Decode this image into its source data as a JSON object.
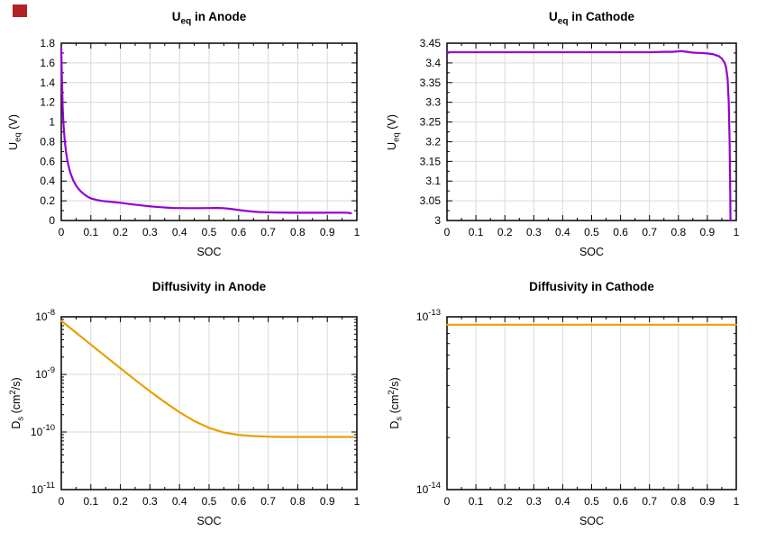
{
  "styles": {
    "background": "#ffffff",
    "axis_color": "#000000",
    "grid_color": "#d9d9d9",
    "text_color": "#000000",
    "anode_ocv_color": "#9400d3",
    "cathode_ocv_color": "#9400d3",
    "diffusivity_color": "#e8a000"
  },
  "marker": {
    "color": "#b22222"
  },
  "chart_data": [
    {
      "type": "line",
      "name": "ueq-anode",
      "title": "U_eq in Anode",
      "title_parts": [
        {
          "t": "U"
        },
        {
          "t": "eq",
          "sub": true
        },
        {
          "t": " in Anode"
        }
      ],
      "xlabel": "SOC",
      "ylabel": "U_eq (V)",
      "ylabel_parts": [
        {
          "t": "U"
        },
        {
          "t": "eq",
          "sub": true
        },
        {
          "t": " (V)"
        }
      ],
      "color": "#9400d3",
      "x_range": [
        0,
        1
      ],
      "y_range": [
        0,
        1.8
      ],
      "y_scale": "linear",
      "xtick_values": [
        0,
        0.1,
        0.2,
        0.3,
        0.4,
        0.5,
        0.6,
        0.7,
        0.8,
        0.9,
        1
      ],
      "xtick_labels": [
        "0",
        "0.1",
        "0.2",
        "0.3",
        "0.4",
        "0.5",
        "0.6",
        "0.7",
        "0.8",
        "0.9",
        "1"
      ],
      "ytick_values": [
        0,
        0.2,
        0.4,
        0.6,
        0.8,
        1,
        1.2,
        1.4,
        1.6,
        1.8
      ],
      "ytick_labels": [
        "0",
        "0.2",
        "0.4",
        "0.6",
        "0.8",
        "1",
        "1.2",
        "1.4",
        "1.6",
        "1.8"
      ],
      "x_minor_step": 0.05,
      "y_minor_step": 0.1,
      "grid": true,
      "points": [
        [
          0,
          1.75
        ],
        [
          0.002,
          1.45
        ],
        [
          0.005,
          1.12
        ],
        [
          0.008,
          0.95
        ],
        [
          0.012,
          0.8
        ],
        [
          0.016,
          0.7
        ],
        [
          0.02,
          0.62
        ],
        [
          0.025,
          0.55
        ],
        [
          0.03,
          0.49
        ],
        [
          0.04,
          0.41
        ],
        [
          0.05,
          0.355
        ],
        [
          0.06,
          0.315
        ],
        [
          0.07,
          0.285
        ],
        [
          0.08,
          0.26
        ],
        [
          0.09,
          0.24
        ],
        [
          0.1,
          0.225
        ],
        [
          0.12,
          0.208
        ],
        [
          0.14,
          0.198
        ],
        [
          0.16,
          0.192
        ],
        [
          0.18,
          0.186
        ],
        [
          0.2,
          0.18
        ],
        [
          0.22,
          0.172
        ],
        [
          0.24,
          0.164
        ],
        [
          0.26,
          0.157
        ],
        [
          0.28,
          0.15
        ],
        [
          0.3,
          0.144
        ],
        [
          0.32,
          0.139
        ],
        [
          0.34,
          0.134
        ],
        [
          0.36,
          0.13
        ],
        [
          0.38,
          0.127
        ],
        [
          0.4,
          0.126
        ],
        [
          0.43,
          0.125
        ],
        [
          0.46,
          0.125
        ],
        [
          0.5,
          0.126
        ],
        [
          0.53,
          0.127
        ],
        [
          0.55,
          0.125
        ],
        [
          0.57,
          0.119
        ],
        [
          0.59,
          0.111
        ],
        [
          0.61,
          0.103
        ],
        [
          0.63,
          0.096
        ],
        [
          0.65,
          0.09
        ],
        [
          0.67,
          0.086
        ],
        [
          0.7,
          0.083
        ],
        [
          0.73,
          0.081
        ],
        [
          0.76,
          0.08
        ],
        [
          0.8,
          0.079
        ],
        [
          0.84,
          0.079
        ],
        [
          0.88,
          0.079
        ],
        [
          0.92,
          0.08
        ],
        [
          0.95,
          0.08
        ],
        [
          0.97,
          0.078
        ],
        [
          0.98,
          0.073
        ]
      ]
    },
    {
      "type": "line",
      "name": "ueq-cathode",
      "title": "U_eq in Cathode",
      "title_parts": [
        {
          "t": "U"
        },
        {
          "t": "eq",
          "sub": true
        },
        {
          "t": " in Cathode"
        }
      ],
      "xlabel": "SOC",
      "ylabel": "U_eq (V)",
      "ylabel_parts": [
        {
          "t": "U"
        },
        {
          "t": "eq",
          "sub": true
        },
        {
          "t": " (V)"
        }
      ],
      "color": "#9400d3",
      "x_range": [
        0,
        1
      ],
      "y_range": [
        3,
        3.45
      ],
      "y_scale": "linear",
      "xtick_values": [
        0,
        0.1,
        0.2,
        0.3,
        0.4,
        0.5,
        0.6,
        0.7,
        0.8,
        0.9,
        1
      ],
      "xtick_labels": [
        "0",
        "0.1",
        "0.2",
        "0.3",
        "0.4",
        "0.5",
        "0.6",
        "0.7",
        "0.8",
        "0.9",
        "1"
      ],
      "ytick_values": [
        3,
        3.05,
        3.1,
        3.15,
        3.2,
        3.25,
        3.3,
        3.35,
        3.4,
        3.45
      ],
      "ytick_labels": [
        "3",
        "3.05",
        "3.1",
        "3.15",
        "3.2",
        "3.25",
        "3.3",
        "3.35",
        "3.4",
        "3.45"
      ],
      "x_minor_step": 0.05,
      "y_minor_step": 0.025,
      "grid": true,
      "points": [
        [
          0,
          3.427
        ],
        [
          0.05,
          3.427
        ],
        [
          0.1,
          3.427
        ],
        [
          0.15,
          3.427
        ],
        [
          0.2,
          3.427
        ],
        [
          0.25,
          3.427
        ],
        [
          0.3,
          3.427
        ],
        [
          0.35,
          3.427
        ],
        [
          0.4,
          3.427
        ],
        [
          0.45,
          3.427
        ],
        [
          0.5,
          3.427
        ],
        [
          0.55,
          3.427
        ],
        [
          0.6,
          3.427
        ],
        [
          0.65,
          3.427
        ],
        [
          0.7,
          3.427
        ],
        [
          0.75,
          3.428
        ],
        [
          0.78,
          3.428
        ],
        [
          0.81,
          3.43
        ],
        [
          0.83,
          3.428
        ],
        [
          0.85,
          3.426
        ],
        [
          0.88,
          3.425
        ],
        [
          0.9,
          3.424
        ],
        [
          0.92,
          3.422
        ],
        [
          0.94,
          3.417
        ],
        [
          0.95,
          3.411
        ],
        [
          0.96,
          3.4
        ],
        [
          0.965,
          3.388
        ],
        [
          0.97,
          3.36
        ],
        [
          0.974,
          3.3
        ],
        [
          0.977,
          3.2
        ],
        [
          0.979,
          3.08
        ],
        [
          0.98,
          3.0
        ]
      ]
    },
    {
      "type": "line",
      "name": "diffusivity-anode",
      "title": "Diffusivity in Anode",
      "title_parts": [
        {
          "t": "Diffusivity in Anode"
        }
      ],
      "xlabel": "SOC",
      "ylabel": "D_s (cm^2/s)",
      "ylabel_parts": [
        {
          "t": "D"
        },
        {
          "t": "s",
          "sub": true
        },
        {
          "t": " (cm"
        },
        {
          "t": "2",
          "sup": true
        },
        {
          "t": "/s)"
        }
      ],
      "color": "#e8a000",
      "x_range": [
        0,
        1
      ],
      "y_range": [
        1e-11,
        1e-08
      ],
      "y_scale": "log",
      "xtick_values": [
        0,
        0.1,
        0.2,
        0.3,
        0.4,
        0.5,
        0.6,
        0.7,
        0.8,
        0.9,
        1
      ],
      "xtick_labels": [
        "0",
        "0.1",
        "0.2",
        "0.3",
        "0.4",
        "0.5",
        "0.6",
        "0.7",
        "0.8",
        "0.9",
        "1"
      ],
      "ytick_values": [
        1e-11,
        1e-10,
        1e-09,
        1e-08
      ],
      "ytick_labels": [
        "10^-11",
        "10^-10",
        "10^-9",
        "10^-8"
      ],
      "x_minor_step": 0.05,
      "grid": true,
      "points": [
        [
          0,
          8.5e-09
        ],
        [
          0.05,
          5.3e-09
        ],
        [
          0.1,
          3.3e-09
        ],
        [
          0.15,
          2.05e-09
        ],
        [
          0.2,
          1.28e-09
        ],
        [
          0.25,
          8e-10
        ],
        [
          0.3,
          5.1e-10
        ],
        [
          0.35,
          3.3e-10
        ],
        [
          0.4,
          2.2e-10
        ],
        [
          0.45,
          1.55e-10
        ],
        [
          0.5,
          1.18e-10
        ],
        [
          0.55,
          9.8e-11
        ],
        [
          0.6,
          8.9e-11
        ],
        [
          0.65,
          8.5e-11
        ],
        [
          0.7,
          8.3e-11
        ],
        [
          0.75,
          8.2e-11
        ],
        [
          0.8,
          8.2e-11
        ],
        [
          0.85,
          8.2e-11
        ],
        [
          0.9,
          8.2e-11
        ],
        [
          0.95,
          8.2e-11
        ],
        [
          0.99,
          8.2e-11
        ]
      ]
    },
    {
      "type": "line",
      "name": "diffusivity-cathode",
      "title": "Diffusivity in Cathode",
      "title_parts": [
        {
          "t": "Diffusivity in Cathode"
        }
      ],
      "xlabel": "SOC",
      "ylabel": "D_s (cm^2/s)",
      "ylabel_parts": [
        {
          "t": "D"
        },
        {
          "t": "s",
          "sub": true
        },
        {
          "t": " (cm"
        },
        {
          "t": "2",
          "sup": true
        },
        {
          "t": "/s)"
        }
      ],
      "color": "#e8a000",
      "x_range": [
        0,
        1
      ],
      "y_range": [
        1e-14,
        1e-13
      ],
      "y_scale": "log",
      "xtick_values": [
        0,
        0.1,
        0.2,
        0.3,
        0.4,
        0.5,
        0.6,
        0.7,
        0.8,
        0.9,
        1
      ],
      "xtick_labels": [
        "0",
        "0.1",
        "0.2",
        "0.3",
        "0.4",
        "0.5",
        "0.6",
        "0.7",
        "0.8",
        "0.9",
        "1"
      ],
      "ytick_values": [
        1e-14,
        1e-13
      ],
      "ytick_labels": [
        "10^-14",
        "10^-13"
      ],
      "x_minor_step": 0.05,
      "grid": true,
      "points": [
        [
          0,
          9e-14
        ],
        [
          1,
          9e-14
        ]
      ]
    }
  ]
}
